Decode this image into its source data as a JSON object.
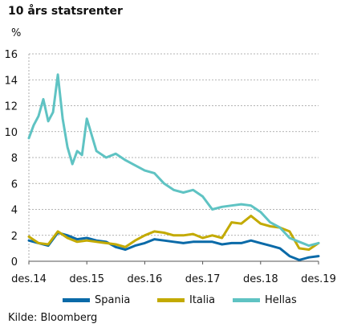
{
  "title": "10 års statsrenter",
  "unit": "%",
  "source": "Kilde: Bloomberg",
  "chart_data": {
    "type": "line",
    "ylim": [
      0,
      16
    ],
    "yticks": [
      0,
      2,
      4,
      6,
      8,
      10,
      12,
      14,
      16
    ],
    "x_range": [
      "2014-12",
      "2019-12"
    ],
    "xticks": [
      "des.14",
      "des.15",
      "des.16",
      "des.17",
      "des.18",
      "des.19"
    ],
    "grid": "horizontal dashed",
    "legend": "bottom",
    "series": [
      {
        "name": "Spania",
        "color": "#0a6aa8",
        "x": [
          "2014-12",
          "2015-02",
          "2015-04",
          "2015-06",
          "2015-08",
          "2015-10",
          "2015-12",
          "2016-02",
          "2016-04",
          "2016-06",
          "2016-08",
          "2016-10",
          "2016-12",
          "2017-02",
          "2017-04",
          "2017-06",
          "2017-08",
          "2017-10",
          "2017-12",
          "2018-02",
          "2018-04",
          "2018-06",
          "2018-08",
          "2018-10",
          "2018-12",
          "2019-02",
          "2019-04",
          "2019-06",
          "2019-08",
          "2019-10",
          "2019-12"
        ],
        "values": [
          1.6,
          1.4,
          1.2,
          2.2,
          2.0,
          1.7,
          1.8,
          1.6,
          1.5,
          1.1,
          0.9,
          1.2,
          1.4,
          1.7,
          1.6,
          1.5,
          1.4,
          1.5,
          1.5,
          1.5,
          1.3,
          1.4,
          1.4,
          1.6,
          1.4,
          1.2,
          1.0,
          0.4,
          0.1,
          0.3,
          0.4
        ]
      },
      {
        "name": "Italia",
        "color": "#c3aa00",
        "x": [
          "2014-12",
          "2015-02",
          "2015-04",
          "2015-06",
          "2015-08",
          "2015-10",
          "2015-12",
          "2016-02",
          "2016-04",
          "2016-06",
          "2016-08",
          "2016-10",
          "2016-12",
          "2017-02",
          "2017-04",
          "2017-06",
          "2017-08",
          "2017-10",
          "2017-12",
          "2018-02",
          "2018-04",
          "2018-06",
          "2018-08",
          "2018-10",
          "2018-12",
          "2019-02",
          "2019-04",
          "2019-06",
          "2019-08",
          "2019-10",
          "2019-12"
        ],
        "values": [
          1.9,
          1.4,
          1.3,
          2.3,
          1.8,
          1.5,
          1.6,
          1.5,
          1.4,
          1.3,
          1.1,
          1.6,
          2.0,
          2.3,
          2.2,
          2.0,
          2.0,
          2.1,
          1.8,
          2.0,
          1.8,
          3.0,
          2.9,
          3.5,
          2.9,
          2.7,
          2.6,
          2.3,
          1.0,
          0.9,
          1.4
        ]
      },
      {
        "name": "Hellas",
        "color": "#5fc3c3",
        "x": [
          "2014-12",
          "2015-01",
          "2015-02",
          "2015-03",
          "2015-04",
          "2015-05",
          "2015-06",
          "2015-07",
          "2015-08",
          "2015-09",
          "2015-10",
          "2015-11",
          "2015-12",
          "2016-02",
          "2016-04",
          "2016-06",
          "2016-08",
          "2016-10",
          "2016-12",
          "2017-02",
          "2017-04",
          "2017-06",
          "2017-08",
          "2017-10",
          "2017-12",
          "2018-02",
          "2018-04",
          "2018-06",
          "2018-08",
          "2018-10",
          "2018-12",
          "2019-02",
          "2019-04",
          "2019-06",
          "2019-08",
          "2019-10",
          "2019-12"
        ],
        "values": [
          9.5,
          10.5,
          11.2,
          12.5,
          10.8,
          11.5,
          14.4,
          11.0,
          8.8,
          7.5,
          8.5,
          8.2,
          11.0,
          8.5,
          8.0,
          8.3,
          7.8,
          7.4,
          7.0,
          6.8,
          6.0,
          5.5,
          5.3,
          5.5,
          5.0,
          4.0,
          4.2,
          4.3,
          4.4,
          4.3,
          3.8,
          3.0,
          2.6,
          1.8,
          1.5,
          1.2,
          1.4
        ]
      }
    ]
  }
}
